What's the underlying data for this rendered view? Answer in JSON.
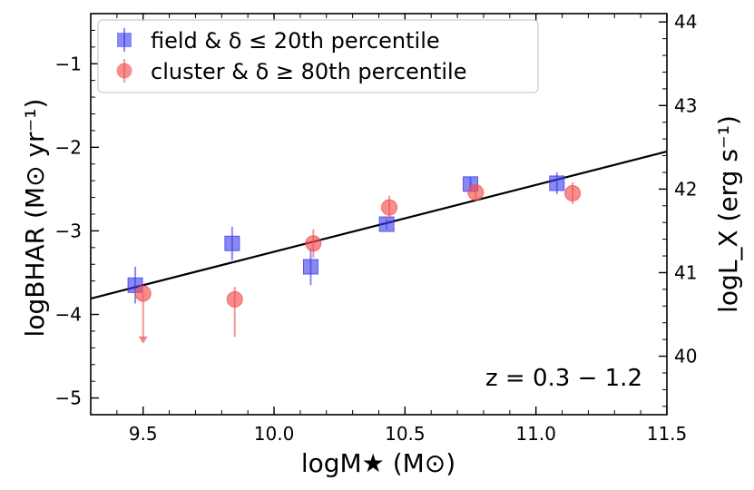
{
  "chart_data": {
    "type": "scatter",
    "xlabel": "logM★ (M⊙)",
    "ylabel": "logBHAR (M⊙ yr⁻¹)",
    "ylabel_right": "logL_X (erg s⁻¹)",
    "annotation": "z = 0.3 − 1.2",
    "xlim": [
      9.3,
      11.5
    ],
    "ylim": [
      -5.2,
      -0.4
    ],
    "ylim_right": [
      39.3,
      44.1
    ],
    "x_ticks": [
      "9.5",
      "10.0",
      "10.5",
      "11.0",
      "11.5"
    ],
    "y_ticks": [
      "−1",
      "−2",
      "−3",
      "−4",
      "−5"
    ],
    "y_right_ticks": [
      "44",
      "43",
      "42",
      "41",
      "40"
    ],
    "legend_position": "top-left",
    "grid": false,
    "series": [
      {
        "name": "field & δ ≤ 20th percentile",
        "marker": "square",
        "color": "#3a3aeb",
        "points": [
          {
            "x": 9.47,
            "y": -3.65,
            "err": 0.22
          },
          {
            "x": 9.84,
            "y": -3.15,
            "err": 0.2
          },
          {
            "x": 10.14,
            "y": -3.43,
            "err": 0.22
          },
          {
            "x": 10.43,
            "y": -2.92,
            "err": 0.06
          },
          {
            "x": 10.75,
            "y": -2.44,
            "err": 0.08
          },
          {
            "x": 11.08,
            "y": -2.43,
            "err": 0.13
          }
        ]
      },
      {
        "name": "cluster & δ ≥ 80th percentile",
        "marker": "circle",
        "color": "#f25050",
        "points": [
          {
            "x": 9.5,
            "y": -3.75,
            "upper_limit": true,
            "arrow_to": -4.35
          },
          {
            "x": 9.85,
            "y": -3.82,
            "err_low": 0.45,
            "err_high": 0.15
          },
          {
            "x": 10.15,
            "y": -3.15,
            "err": 0.17
          },
          {
            "x": 10.44,
            "y": -2.72,
            "err": 0.14
          },
          {
            "x": 10.77,
            "y": -2.54,
            "err": 0.1
          },
          {
            "x": 11.14,
            "y": -2.55,
            "err": 0.13
          }
        ]
      }
    ],
    "fit_line": {
      "x": [
        9.3,
        11.5
      ],
      "y": [
        -3.81,
        -2.05
      ]
    }
  }
}
